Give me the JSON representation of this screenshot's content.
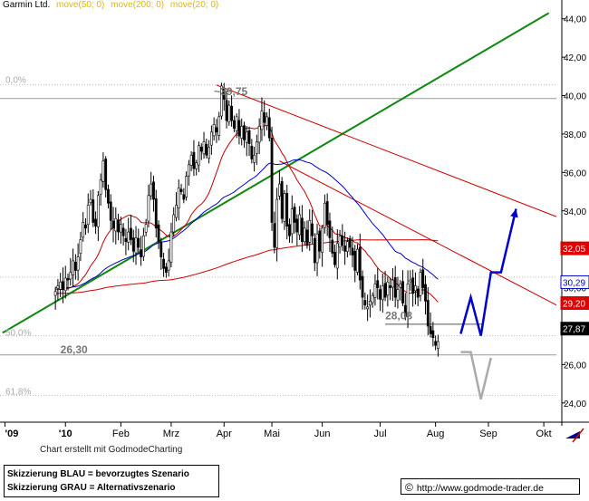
{
  "header": {
    "title": "Garmin Ltd.",
    "ma_labels": [
      "move(50; 0)",
      "move(200; 0)",
      "move(20; 0)"
    ]
  },
  "footer": {
    "credit": "Chart erstellt mit GodmodeCharting",
    "legend_blue": "Skizzierung BLAU = bevorzugtes Szenario",
    "legend_gray": "Skizzierung GRAU = Alternativszenario",
    "copyright_symbol": "©",
    "url": "http://www.godmode-trader.de"
  },
  "colors": {
    "price": "#000000",
    "ma20": "#c00000",
    "ma50": "#0000cc",
    "ma200": "#cc0000",
    "support_trend": "#118811",
    "resistance_trend": "#cc0000",
    "blue_scenario": "#0000cc",
    "gray_scenario": "#aaaaaa",
    "badge_red": "#dd0000",
    "badge_blue": "#0000cc",
    "badge_black": "#000000"
  },
  "chart_data": {
    "type": "candlestick",
    "title": "Garmin Ltd.",
    "x_tick_labels": [
      "'09",
      "'10",
      "Feb",
      "Mrz",
      "Apr",
      "Mai",
      "Jun",
      "Jul",
      "Aug",
      "Sep",
      "Okt"
    ],
    "x_tick_index": [
      -20,
      4,
      26,
      46,
      67,
      86,
      106,
      129,
      151,
      172,
      194
    ],
    "y_ticks": [
      24,
      26,
      28,
      30,
      32,
      34,
      36,
      38,
      40,
      42,
      44
    ],
    "y_tick_labels": [
      "24,00",
      "26,00",
      "28,00",
      "30,00",
      "32,00",
      "34,00",
      "36,00",
      "38,00",
      "40,00",
      "42,00",
      "44,00"
    ],
    "ylim": [
      23.0,
      44.6
    ],
    "xlim": [
      -22,
      199
    ],
    "close": [
      29.8,
      30.1,
      30.3,
      29.9,
      30.5,
      30.4,
      30.8,
      31.4,
      30.9,
      31.6,
      32.5,
      33.4,
      33.1,
      34.3,
      34.6,
      33.4,
      33.2,
      34.8,
      35.6,
      36.6,
      35.1,
      34.4,
      33.5,
      33.1,
      33.6,
      32.9,
      33.3,
      32.7,
      32.4,
      32.9,
      32.5,
      31.9,
      32.6,
      32.1,
      31.6,
      32.7,
      33.3,
      34.8,
      35.4,
      34.6,
      33.1,
      32.4,
      31.6,
      31.0,
      30.8,
      31.4,
      32.9,
      33.8,
      34.3,
      35.2,
      35.0,
      34.6,
      35.8,
      36.4,
      36.9,
      36.2,
      36.5,
      37.4,
      37.1,
      37.6,
      36.9,
      37.3,
      38.1,
      38.5,
      38.1,
      38.9,
      40.5,
      39.8,
      38.7,
      39.5,
      38.7,
      38.3,
      38.9,
      37.9,
      38.4,
      37.7,
      38.1,
      37.5,
      36.7,
      36.9,
      37.6,
      38.4,
      39.2,
      38.6,
      38.9,
      37.8,
      33.4,
      32.1,
      34.6,
      35.4,
      33.6,
      34.9,
      33.2,
      32.7,
      34.1,
      33.4,
      32.9,
      33.8,
      32.4,
      33.1,
      32.2,
      33.5,
      32.7,
      31.3,
      32.8,
      31.9,
      33.1,
      34.4,
      33.3,
      32.6,
      31.8,
      31.2,
      32.3,
      32.7,
      32.2,
      31.9,
      32.4,
      32.1,
      31.7,
      30.9,
      32.0,
      30.4,
      29.5,
      29.1,
      29.0,
      29.3,
      29.6,
      30.2,
      30.0,
      29.4,
      30.1,
      29.5,
      30.3,
      30.0,
      30.4,
      29.5,
      29.9,
      30.2,
      29.2,
      28.5,
      30.2,
      30.4,
      29.7,
      30.1,
      29.5,
      30.8,
      30.0,
      29.3,
      28.0,
      27.6,
      27.4,
      27.0,
      27.2
    ],
    "ma20_note": "20-day moving average (red)",
    "ma50_note": "50-day moving average (blue)",
    "ma200_note": "200-day moving average (dark red)",
    "annotations": [
      {
        "text": "~39,75",
        "x": 63,
        "y": 39.75
      },
      {
        "text": "26,30",
        "x": 2,
        "y": 26.3
      },
      {
        "text": "28,08",
        "x": 131,
        "y": 28.08
      },
      {
        "text": "0,0%",
        "x": -20,
        "y": 40.56
      },
      {
        "text": "50,0%",
        "x": -20,
        "y": 27.4
      },
      {
        "text": "61,8%",
        "x": -20,
        "y": 24.35
      }
    ],
    "horizontal_lines": [
      {
        "y": 40.56,
        "style": "dotted"
      },
      {
        "y": 39.85,
        "style": "solid"
      },
      {
        "y": 30.55,
        "style": "dotted"
      },
      {
        "y": 27.5,
        "style": "dotted"
      },
      {
        "y": 26.5,
        "style": "solid"
      },
      {
        "y": 24.4,
        "style": "dotted"
      }
    ],
    "support_trendline": {
      "from": [
        -21,
        27.65
      ],
      "to": [
        196,
        44.3
      ]
    },
    "resistance_trendline": {
      "from": [
        64,
        40.55
      ],
      "to": [
        199,
        33.7
      ]
    },
    "resistance_trendline_2": {
      "from": [
        89,
        36.6
      ],
      "to": [
        199,
        29.1
      ]
    },
    "support_hline_28": {
      "from": [
        131,
        28.1
      ],
      "to": [
        170,
        28.1
      ]
    },
    "blue_scenario_path": [
      [
        161,
        27.6
      ],
      [
        165,
        29.5
      ],
      [
        169,
        27.5
      ],
      [
        173,
        30.8
      ],
      [
        177,
        30.8
      ],
      [
        183,
        34.1
      ]
    ],
    "gray_scenario_path": [
      [
        161,
        26.65
      ],
      [
        165,
        26.65
      ],
      [
        169,
        24.2
      ],
      [
        173,
        26.35
      ]
    ],
    "price_badges": [
      {
        "label": "32,05",
        "value": 32.05,
        "color": "red"
      },
      {
        "label": "30,29",
        "value": 30.29,
        "color": "blue"
      },
      {
        "label": "29,20",
        "value": 29.2,
        "color": "red"
      },
      {
        "label": "27,87",
        "value": 27.87,
        "color": "black"
      }
    ]
  }
}
